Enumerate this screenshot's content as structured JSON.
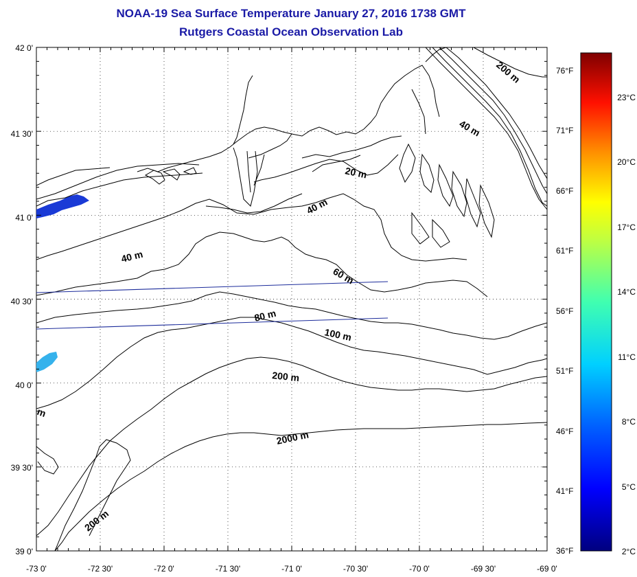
{
  "title": "NOAA-19 Sea Surface Temperature January 27, 2016 1738 GMT",
  "subtitle": "Rutgers Coastal Ocean Observation Lab",
  "map": {
    "lon_range": [
      -73,
      -69
    ],
    "lat_range": [
      39,
      42
    ],
    "lon_labels": [
      "-73 0'",
      "-72 30'",
      "-72 0'",
      "-71 30'",
      "-71 0'",
      "-70 30'",
      "-70 0'",
      "-69 30'",
      "-69 0'"
    ],
    "lat_labels": [
      "39 0'",
      "39 30'",
      "40 0'",
      "40 30'",
      "41 0'",
      "41 30'",
      "42 0'"
    ],
    "grid": "dotted",
    "contour_labels": [
      "20 m",
      "40 m",
      "40 m",
      "40 m",
      "60 m",
      "80 m",
      "100 m",
      "200 m",
      "200 m",
      "200 m",
      "2000 m",
      "m"
    ],
    "sst_colors": [
      "#1a3ad6",
      "#35b2ec"
    ]
  },
  "colorbar": {
    "celsius": [
      "2°C",
      "5°C",
      "8°C",
      "11°C",
      "14°C",
      "17°C",
      "20°C",
      "23°C"
    ],
    "fahrenheit": [
      "36°F",
      "41°F",
      "46°F",
      "51°F",
      "56°F",
      "61°F",
      "66°F",
      "71°F",
      "76°F"
    ],
    "colors": [
      "#00007f",
      "#0000ff",
      "#0080ff",
      "#00ffff",
      "#80ff80",
      "#ffff00",
      "#ff8000",
      "#ff0000",
      "#7f0000"
    ]
  }
}
